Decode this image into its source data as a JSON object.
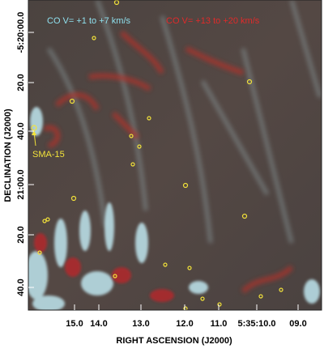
{
  "annotations": {
    "blue_band": "CO V= +1 to  +7   km/s",
    "red_band": "CO V= +13 to +20 km/s",
    "source": "SMA-15"
  },
  "x_axis": {
    "label": "RIGHT ASCENSION (J2000)",
    "ticks": [
      "15.0",
      "14.0",
      "13.0",
      "12.0",
      "11.0",
      "5:35:10.0",
      "09.0"
    ]
  },
  "y_axis": {
    "label": "DECLINATION (J2000)",
    "ticks": [
      "-5:20:00.0",
      "20.0",
      "40.0",
      "21:00.0",
      "20.0",
      "40.0"
    ]
  }
}
